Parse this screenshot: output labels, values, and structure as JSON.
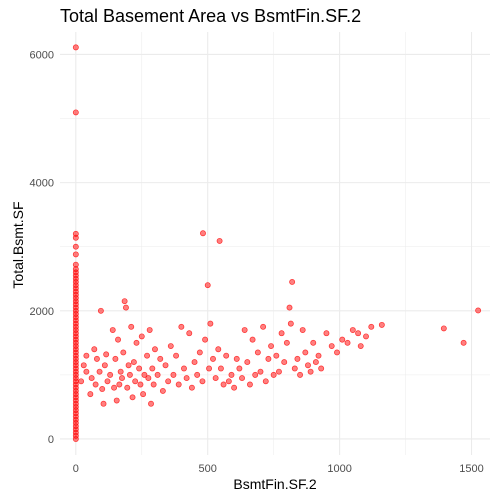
{
  "chart_data": {
    "type": "scatter",
    "title": "Total Basement Area vs BsmtFin.SF.2",
    "xlabel": "BsmtFin.SF.2",
    "ylabel": "Total.Bsmt.SF",
    "xlim": [
      -60,
      1570
    ],
    "ylim": [
      -250,
      6350
    ],
    "xticks": [
      0,
      500,
      1000,
      1500
    ],
    "yticks": [
      0,
      2000,
      4000,
      6000
    ],
    "grid": true,
    "point_color": "#ff0000",
    "background": "#ffffff",
    "series": [
      {
        "points": [
          [
            0,
            6110
          ],
          [
            0,
            5095
          ],
          [
            0,
            3200
          ],
          [
            0,
            3140
          ],
          [
            0,
            3000
          ],
          [
            0,
            2880
          ],
          [
            0,
            2720
          ],
          [
            0,
            2650
          ],
          [
            0,
            2600
          ],
          [
            0,
            2550
          ],
          [
            0,
            2500
          ],
          [
            0,
            2450
          ],
          [
            0,
            2400
          ],
          [
            0,
            2350
          ],
          [
            0,
            2300
          ],
          [
            0,
            2250
          ],
          [
            0,
            2200
          ],
          [
            0,
            2150
          ],
          [
            0,
            2100
          ],
          [
            0,
            2050
          ],
          [
            0,
            2000
          ],
          [
            0,
            1950
          ],
          [
            0,
            1900
          ],
          [
            0,
            1850
          ],
          [
            0,
            1800
          ],
          [
            0,
            1750
          ],
          [
            0,
            1700
          ],
          [
            0,
            1650
          ],
          [
            0,
            1600
          ],
          [
            0,
            1550
          ],
          [
            0,
            1500
          ],
          [
            0,
            1450
          ],
          [
            0,
            1400
          ],
          [
            0,
            1350
          ],
          [
            0,
            1300
          ],
          [
            0,
            1250
          ],
          [
            0,
            1200
          ],
          [
            0,
            1150
          ],
          [
            0,
            1100
          ],
          [
            0,
            1050
          ],
          [
            0,
            1000
          ],
          [
            0,
            950
          ],
          [
            0,
            900
          ],
          [
            0,
            850
          ],
          [
            0,
            800
          ],
          [
            0,
            750
          ],
          [
            0,
            700
          ],
          [
            0,
            650
          ],
          [
            0,
            600
          ],
          [
            0,
            550
          ],
          [
            0,
            500
          ],
          [
            0,
            450
          ],
          [
            0,
            400
          ],
          [
            0,
            350
          ],
          [
            0,
            300
          ],
          [
            0,
            250
          ],
          [
            0,
            200
          ],
          [
            0,
            150
          ],
          [
            0,
            100
          ],
          [
            0,
            50
          ],
          [
            0,
            0
          ],
          [
            20,
            900
          ],
          [
            30,
            1150
          ],
          [
            40,
            1050
          ],
          [
            40,
            1300
          ],
          [
            55,
            700
          ],
          [
            60,
            950
          ],
          [
            70,
            1400
          ],
          [
            75,
            850
          ],
          [
            80,
            1250
          ],
          [
            90,
            1050
          ],
          [
            95,
            2000
          ],
          [
            100,
            780
          ],
          [
            105,
            550
          ],
          [
            110,
            1150
          ],
          [
            115,
            1320
          ],
          [
            120,
            900
          ],
          [
            130,
            1000
          ],
          [
            140,
            1700
          ],
          [
            145,
            800
          ],
          [
            150,
            1250
          ],
          [
            155,
            600
          ],
          [
            160,
            1550
          ],
          [
            165,
            850
          ],
          [
            170,
            1050
          ],
          [
            175,
            950
          ],
          [
            180,
            1350
          ],
          [
            185,
            2150
          ],
          [
            190,
            2050
          ],
          [
            195,
            800
          ],
          [
            200,
            1150
          ],
          [
            205,
            1000
          ],
          [
            210,
            1750
          ],
          [
            215,
            650
          ],
          [
            220,
            1200
          ],
          [
            225,
            900
          ],
          [
            230,
            1500
          ],
          [
            240,
            1100
          ],
          [
            245,
            850
          ],
          [
            250,
            1600
          ],
          [
            255,
            700
          ],
          [
            260,
            1000
          ],
          [
            270,
            1300
          ],
          [
            275,
            950
          ],
          [
            280,
            1700
          ],
          [
            285,
            550
          ],
          [
            290,
            1100
          ],
          [
            295,
            850
          ],
          [
            300,
            1400
          ],
          [
            310,
            1000
          ],
          [
            320,
            1250
          ],
          [
            330,
            750
          ],
          [
            340,
            1150
          ],
          [
            350,
            900
          ],
          [
            360,
            1450
          ],
          [
            370,
            1000
          ],
          [
            380,
            1300
          ],
          [
            390,
            850
          ],
          [
            400,
            1750
          ],
          [
            410,
            1100
          ],
          [
            420,
            950
          ],
          [
            430,
            1650
          ],
          [
            440,
            800
          ],
          [
            450,
            1200
          ],
          [
            460,
            1000
          ],
          [
            470,
            1350
          ],
          [
            480,
            900
          ],
          [
            482,
            3210
          ],
          [
            490,
            1550
          ],
          [
            500,
            2400
          ],
          [
            505,
            1100
          ],
          [
            510,
            1800
          ],
          [
            520,
            1250
          ],
          [
            530,
            950
          ],
          [
            540,
            1400
          ],
          [
            545,
            3090
          ],
          [
            550,
            1100
          ],
          [
            560,
            850
          ],
          [
            570,
            1300
          ],
          [
            580,
            900
          ],
          [
            590,
            1000
          ],
          [
            600,
            800
          ],
          [
            610,
            1250
          ],
          [
            620,
            1100
          ],
          [
            630,
            950
          ],
          [
            640,
            1700
          ],
          [
            650,
            1200
          ],
          [
            660,
            850
          ],
          [
            670,
            1550
          ],
          [
            680,
            1000
          ],
          [
            690,
            1350
          ],
          [
            700,
            1050
          ],
          [
            710,
            1750
          ],
          [
            720,
            900
          ],
          [
            730,
            1250
          ],
          [
            740,
            1450
          ],
          [
            750,
            1000
          ],
          [
            760,
            1300
          ],
          [
            770,
            1050
          ],
          [
            780,
            1650
          ],
          [
            790,
            1200
          ],
          [
            800,
            1500
          ],
          [
            810,
            2050
          ],
          [
            815,
            1800
          ],
          [
            820,
            2450
          ],
          [
            830,
            1100
          ],
          [
            840,
            1250
          ],
          [
            850,
            1000
          ],
          [
            860,
            1700
          ],
          [
            870,
            1350
          ],
          [
            880,
            1150
          ],
          [
            890,
            1050
          ],
          [
            900,
            1500
          ],
          [
            910,
            1200
          ],
          [
            920,
            1300
          ],
          [
            930,
            1100
          ],
          [
            950,
            1650
          ],
          [
            970,
            1450
          ],
          [
            990,
            1350
          ],
          [
            1010,
            1550
          ],
          [
            1030,
            1500
          ],
          [
            1050,
            1700
          ],
          [
            1070,
            1650
          ],
          [
            1080,
            1450
          ],
          [
            1100,
            1600
          ],
          [
            1120,
            1750
          ],
          [
            1160,
            1780
          ],
          [
            1395,
            1725
          ],
          [
            1470,
            1500
          ],
          [
            1525,
            2005
          ]
        ]
      }
    ]
  }
}
